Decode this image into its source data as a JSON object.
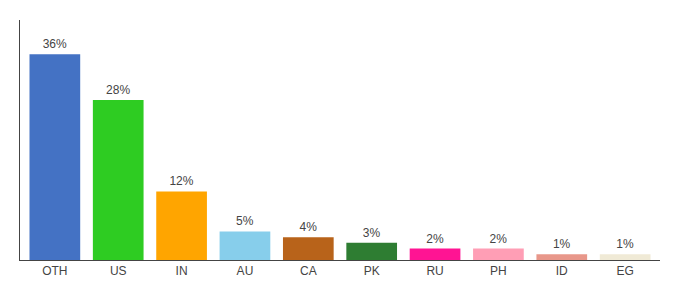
{
  "chart_data": {
    "type": "bar",
    "categories": [
      "OTH",
      "US",
      "IN",
      "AU",
      "CA",
      "PK",
      "RU",
      "PH",
      "ID",
      "EG"
    ],
    "values": [
      36,
      28,
      12,
      5,
      4,
      3,
      2,
      2,
      1,
      1
    ],
    "value_labels": [
      "36%",
      "28%",
      "12%",
      "5%",
      "4%",
      "3%",
      "2%",
      "2%",
      "1%",
      "1%"
    ],
    "data_labels": true,
    "colors": [
      "#4472c4",
      "#2ecc22",
      "#ffa500",
      "#87ceeb",
      "#b8631a",
      "#2e7d32",
      "#ff1493",
      "#ff9eb5",
      "#e8978a",
      "#f0ead6"
    ],
    "ylim": [
      0,
      42
    ],
    "grid": false,
    "tick_labels": "x"
  }
}
